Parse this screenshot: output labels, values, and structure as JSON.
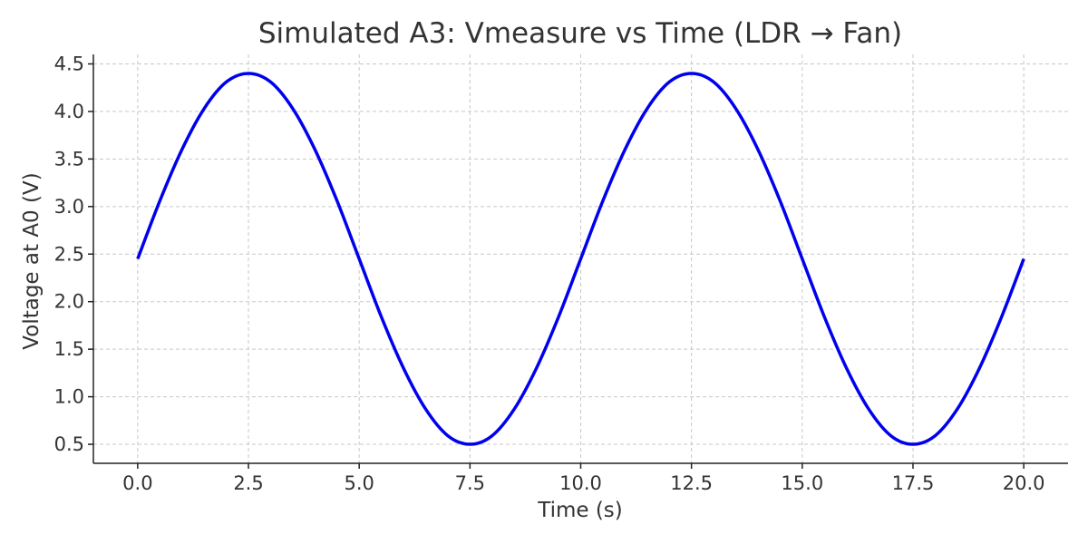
{
  "chart_data": {
    "type": "line",
    "title": "Simulated A3: Vmeasure vs Time (LDR → Fan)",
    "xlabel": "Time (s)",
    "ylabel": "Voltage at A0 (V)",
    "xlim": [
      -1.0,
      21.0
    ],
    "ylim": [
      0.3,
      4.6
    ],
    "x_ticks": [
      0.0,
      2.5,
      5.0,
      7.5,
      10.0,
      12.5,
      15.0,
      17.5,
      20.0
    ],
    "x_tick_labels": [
      "0.0",
      "2.5",
      "5.0",
      "7.5",
      "10.0",
      "12.5",
      "15.0",
      "17.5",
      "20.0"
    ],
    "y_ticks": [
      0.5,
      1.0,
      1.5,
      2.0,
      2.5,
      3.0,
      3.5,
      4.0,
      4.5
    ],
    "y_tick_labels": [
      "0.5",
      "1.0",
      "1.5",
      "2.0",
      "2.5",
      "3.0",
      "3.5",
      "4.0",
      "4.5"
    ],
    "grid": true,
    "legend": "none",
    "series": [
      {
        "color": "#0000ee",
        "x": [
          0.0,
          0.5,
          1.0,
          1.5,
          2.0,
          2.5,
          3.0,
          3.5,
          4.0,
          4.5,
          5.0,
          5.5,
          6.0,
          6.5,
          7.0,
          7.5,
          8.0,
          8.5,
          9.0,
          9.5,
          10.0,
          10.5,
          11.0,
          11.5,
          12.0,
          12.5,
          13.0,
          13.5,
          14.0,
          14.5,
          15.0,
          15.5,
          16.0,
          16.5,
          17.0,
          17.5,
          18.0,
          18.5,
          19.0,
          19.5,
          20.0
        ],
        "values": [
          2.45,
          3.06,
          3.6,
          4.03,
          4.31,
          4.4,
          4.31,
          4.03,
          3.6,
          3.06,
          2.45,
          1.84,
          1.3,
          0.87,
          0.59,
          0.5,
          0.59,
          0.87,
          1.3,
          1.84,
          2.45,
          3.06,
          3.6,
          4.03,
          4.31,
          4.4,
          4.31,
          4.03,
          3.6,
          3.06,
          2.45,
          1.84,
          1.3,
          0.87,
          0.59,
          0.5,
          0.59,
          0.87,
          1.3,
          1.84,
          2.45
        ]
      }
    ]
  }
}
